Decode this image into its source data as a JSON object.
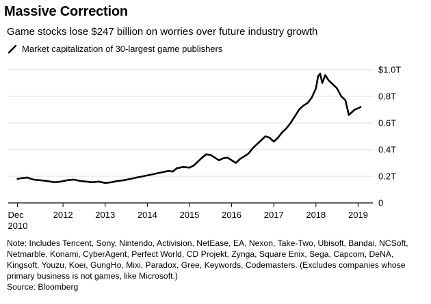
{
  "title": "Massive Correction",
  "subtitle": "Game stocks lose $247 billion on worries over future industry growth",
  "legend_label": "Market capitalization of 30-largest game publishers",
  "note": "Note: Includes Tencent, Sony, Nintendo, Activision, NetEase, EA, Nexon, Take-Two, Ubisoft, Bandai, NCSoft, Netmarble, Konami, CyberAgent, Perfect World, CD Projekt, Zynga, Square Enix, Sega, Capcom, DeNA, Kingsoft, Youzu, Koei, GungHo, Mixi, Paradox, Gree, Keywords, Codemasters. (Excludes companies whose primary business is not games, like Microsoft.)",
  "source": "Source: Bloomberg",
  "colors": {
    "line": "#000000",
    "grid": "#dddddd",
    "axis": "#000000",
    "text": "#000000"
  },
  "chart_data": {
    "type": "line",
    "title": "Massive Correction",
    "xlabel": "",
    "ylabel": "",
    "series": [
      {
        "name": "Market capitalization of 30-largest game publishers",
        "unit": "trillion USD",
        "points": [
          [
            2010.92,
            0.18
          ],
          [
            2011.0,
            0.185
          ],
          [
            2011.15,
            0.19
          ],
          [
            2011.3,
            0.175
          ],
          [
            2011.45,
            0.17
          ],
          [
            2011.6,
            0.165
          ],
          [
            2011.8,
            0.155
          ],
          [
            2011.95,
            0.16
          ],
          [
            2012.1,
            0.17
          ],
          [
            2012.25,
            0.175
          ],
          [
            2012.4,
            0.165
          ],
          [
            2012.55,
            0.16
          ],
          [
            2012.7,
            0.155
          ],
          [
            2012.85,
            0.16
          ],
          [
            2013.0,
            0.15
          ],
          [
            2013.15,
            0.155
          ],
          [
            2013.3,
            0.165
          ],
          [
            2013.45,
            0.17
          ],
          [
            2013.6,
            0.18
          ],
          [
            2013.75,
            0.19
          ],
          [
            2013.9,
            0.2
          ],
          [
            2014.05,
            0.21
          ],
          [
            2014.2,
            0.22
          ],
          [
            2014.35,
            0.23
          ],
          [
            2014.5,
            0.24
          ],
          [
            2014.6,
            0.235
          ],
          [
            2014.7,
            0.26
          ],
          [
            2014.85,
            0.27
          ],
          [
            2015.0,
            0.265
          ],
          [
            2015.1,
            0.28
          ],
          [
            2015.2,
            0.31
          ],
          [
            2015.3,
            0.34
          ],
          [
            2015.4,
            0.365
          ],
          [
            2015.5,
            0.36
          ],
          [
            2015.6,
            0.34
          ],
          [
            2015.7,
            0.32
          ],
          [
            2015.8,
            0.335
          ],
          [
            2015.9,
            0.34
          ],
          [
            2016.0,
            0.32
          ],
          [
            2016.1,
            0.3
          ],
          [
            2016.2,
            0.33
          ],
          [
            2016.3,
            0.35
          ],
          [
            2016.4,
            0.37
          ],
          [
            2016.5,
            0.41
          ],
          [
            2016.6,
            0.44
          ],
          [
            2016.7,
            0.47
          ],
          [
            2016.8,
            0.5
          ],
          [
            2016.9,
            0.49
          ],
          [
            2017.0,
            0.46
          ],
          [
            2017.1,
            0.49
          ],
          [
            2017.2,
            0.53
          ],
          [
            2017.3,
            0.56
          ],
          [
            2017.4,
            0.6
          ],
          [
            2017.5,
            0.65
          ],
          [
            2017.6,
            0.7
          ],
          [
            2017.7,
            0.73
          ],
          [
            2017.8,
            0.75
          ],
          [
            2017.9,
            0.79
          ],
          [
            2018.0,
            0.86
          ],
          [
            2018.05,
            0.95
          ],
          [
            2018.1,
            0.97
          ],
          [
            2018.15,
            0.9
          ],
          [
            2018.22,
            0.96
          ],
          [
            2018.3,
            0.92
          ],
          [
            2018.4,
            0.89
          ],
          [
            2018.5,
            0.86
          ],
          [
            2018.6,
            0.8
          ],
          [
            2018.7,
            0.77
          ],
          [
            2018.78,
            0.66
          ],
          [
            2018.85,
            0.68
          ],
          [
            2018.92,
            0.7
          ],
          [
            2019.0,
            0.71
          ],
          [
            2019.06,
            0.72
          ]
        ]
      }
    ],
    "xlim": [
      2010.7,
      2019.35
    ],
    "ylim": [
      0,
      1.0
    ],
    "x_ticks": [
      {
        "value": 2010.92,
        "label": "Dec",
        "label2": "2010"
      },
      {
        "value": 2012.0,
        "label": "2012"
      },
      {
        "value": 2013.0,
        "label": "2013"
      },
      {
        "value": 2014.0,
        "label": "2014"
      },
      {
        "value": 2015.0,
        "label": "2015"
      },
      {
        "value": 2016.0,
        "label": "2016"
      },
      {
        "value": 2017.0,
        "label": "2017"
      },
      {
        "value": 2018.0,
        "label": "2018"
      },
      {
        "value": 2019.0,
        "label": "2019"
      }
    ],
    "y_ticks": [
      {
        "value": 0,
        "label": "0"
      },
      {
        "value": 0.2,
        "label": "0.2T"
      },
      {
        "value": 0.4,
        "label": "0.4T"
      },
      {
        "value": 0.6,
        "label": "0.6T"
      },
      {
        "value": 0.8,
        "label": "0.8T"
      },
      {
        "value": 1.0,
        "label": "$1.0T"
      }
    ],
    "grid": true,
    "legend_position": "top-left"
  }
}
